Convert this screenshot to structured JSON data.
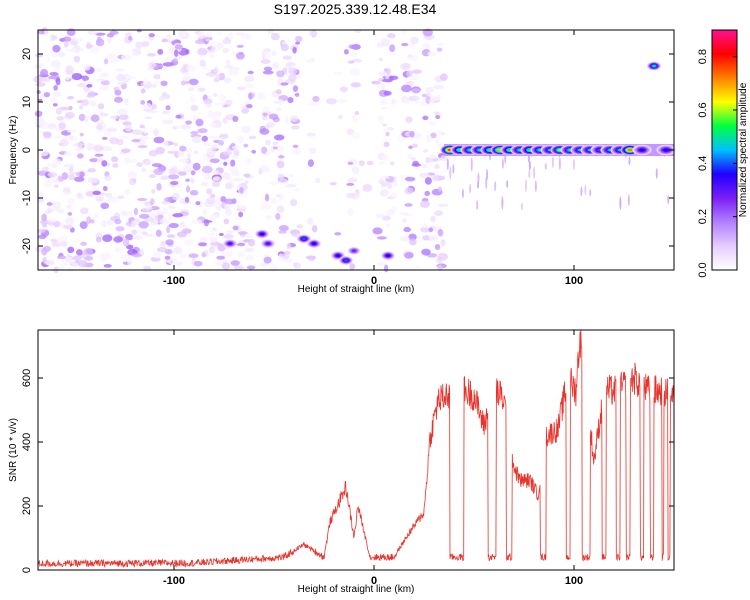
{
  "title": "S197.2025.339.12.48.E34",
  "chart_data": [
    {
      "type": "heatmap",
      "xlabel": "Height of straight line (km)",
      "ylabel": "Frequency (Hz)",
      "xlim": [
        -168,
        150
      ],
      "ylim": [
        -25,
        25
      ],
      "xticks": [
        -100,
        0,
        100
      ],
      "yticks": [
        -20,
        -10,
        0,
        10,
        20
      ],
      "colorbar": {
        "label": "Normalized spectral amplitude",
        "range": [
          0,
          0.9
        ],
        "ticks": [
          0.0,
          0.2,
          0.4,
          0.6,
          0.8
        ],
        "colors": [
          "#ffffff",
          "#e6ccff",
          "#b27fff",
          "#7a1ff5",
          "#2000ff",
          "#00c0ff",
          "#00ff40",
          "#ffff00",
          "#ff8000",
          "#ff0000",
          "#ff1090"
        ]
      },
      "noise_region_km": [
        -168,
        35
      ],
      "blank_strips_km": [
        [
          -60,
          -55
        ],
        [
          -38,
          -32
        ],
        [
          -30,
          -12
        ],
        [
          -8,
          3
        ],
        [
          10,
          15
        ],
        [
          22,
          25
        ]
      ],
      "signal_line": {
        "x_range_km": [
          35,
          150
        ],
        "frequency_hz": 0,
        "blobs": [
          {
            "x": 38,
            "amp": 0.85
          },
          {
            "x": 43,
            "amp": 0.6
          },
          {
            "x": 48,
            "amp": 0.55
          },
          {
            "x": 53,
            "amp": 0.55
          },
          {
            "x": 58,
            "amp": 0.6
          },
          {
            "x": 63,
            "amp": 0.75
          },
          {
            "x": 68,
            "amp": 0.6
          },
          {
            "x": 73,
            "amp": 0.55
          },
          {
            "x": 78,
            "amp": 0.6
          },
          {
            "x": 83,
            "amp": 0.55
          },
          {
            "x": 88,
            "amp": 0.5
          },
          {
            "x": 93,
            "amp": 0.65
          },
          {
            "x": 98,
            "amp": 0.55
          },
          {
            "x": 103,
            "amp": 0.5
          },
          {
            "x": 108,
            "amp": 0.5
          },
          {
            "x": 113,
            "amp": 0.45
          },
          {
            "x": 118,
            "amp": 0.5
          },
          {
            "x": 123,
            "amp": 0.5
          },
          {
            "x": 128,
            "amp": 0.8
          },
          {
            "x": 134,
            "amp": 0.4
          },
          {
            "x": 146,
            "amp": 0.4
          }
        ]
      },
      "blobs": [
        {
          "x": 140,
          "y": 17.5,
          "amp": 0.55
        },
        {
          "x": -72,
          "y": -19.5,
          "amp": 0.35
        },
        {
          "x": -56,
          "y": -17.5,
          "amp": 0.4
        },
        {
          "x": -53,
          "y": -19.5,
          "amp": 0.35
        },
        {
          "x": -35,
          "y": -18.5,
          "amp": 0.45
        },
        {
          "x": -30,
          "y": -19.5,
          "amp": 0.4
        },
        {
          "x": -18,
          "y": -22,
          "amp": 0.4
        },
        {
          "x": -14,
          "y": -23,
          "amp": 0.45
        },
        {
          "x": -10,
          "y": -21,
          "amp": 0.3
        },
        {
          "x": 7,
          "y": -22,
          "amp": 0.4
        }
      ]
    },
    {
      "type": "line",
      "xlabel": "Height of straight line (km)",
      "ylabel": "SNR (10 * v/v)",
      "xlim": [
        -168,
        150
      ],
      "ylim": [
        0,
        750
      ],
      "xticks": [
        -100,
        0,
        100
      ],
      "yticks": [
        0,
        200,
        400,
        600
      ],
      "color": "#e8322a",
      "envelope": [
        {
          "x": -168,
          "y": 20
        },
        {
          "x": -90,
          "y": 22
        },
        {
          "x": -45,
          "y": 40
        },
        {
          "x": -35,
          "y": 80
        },
        {
          "x": -25,
          "y": 40
        },
        {
          "x": -22,
          "y": 150
        },
        {
          "x": -14,
          "y": 260
        },
        {
          "x": -10,
          "y": 100
        },
        {
          "x": -8,
          "y": 200
        },
        {
          "x": -2,
          "y": 40
        },
        {
          "x": 10,
          "y": 40
        },
        {
          "x": 18,
          "y": 120
        },
        {
          "x": 25,
          "y": 180
        },
        {
          "x": 28,
          "y": 410
        },
        {
          "x": 32,
          "y": 530
        },
        {
          "x": 40,
          "y": 555
        },
        {
          "x": 45,
          "y": 560
        },
        {
          "x": 50,
          "y": 545
        },
        {
          "x": 55,
          "y": 450
        },
        {
          "x": 60,
          "y": 570
        },
        {
          "x": 65,
          "y": 530
        },
        {
          "x": 70,
          "y": 320
        },
        {
          "x": 73,
          "y": 280
        },
        {
          "x": 78,
          "y": 280
        },
        {
          "x": 82,
          "y": 235
        },
        {
          "x": 86,
          "y": 420
        },
        {
          "x": 92,
          "y": 440
        },
        {
          "x": 97,
          "y": 600
        },
        {
          "x": 101,
          "y": 560
        },
        {
          "x": 103,
          "y": 735
        },
        {
          "x": 106,
          "y": 560
        },
        {
          "x": 110,
          "y": 340
        },
        {
          "x": 115,
          "y": 560
        },
        {
          "x": 122,
          "y": 560
        },
        {
          "x": 130,
          "y": 600
        },
        {
          "x": 137,
          "y": 560
        },
        {
          "x": 144,
          "y": 560
        },
        {
          "x": 150,
          "y": 540
        }
      ],
      "dropouts_km": [
        [
          38,
          45
        ],
        [
          57,
          61
        ],
        [
          66,
          69
        ],
        [
          83,
          86
        ],
        [
          96,
          98
        ],
        [
          104,
          108
        ],
        [
          114,
          116
        ],
        [
          121,
          123
        ],
        [
          126,
          128
        ],
        [
          133,
          135
        ],
        [
          138,
          140
        ],
        [
          144,
          145
        ],
        [
          147,
          148
        ]
      ],
      "dropout_level": 40
    }
  ]
}
